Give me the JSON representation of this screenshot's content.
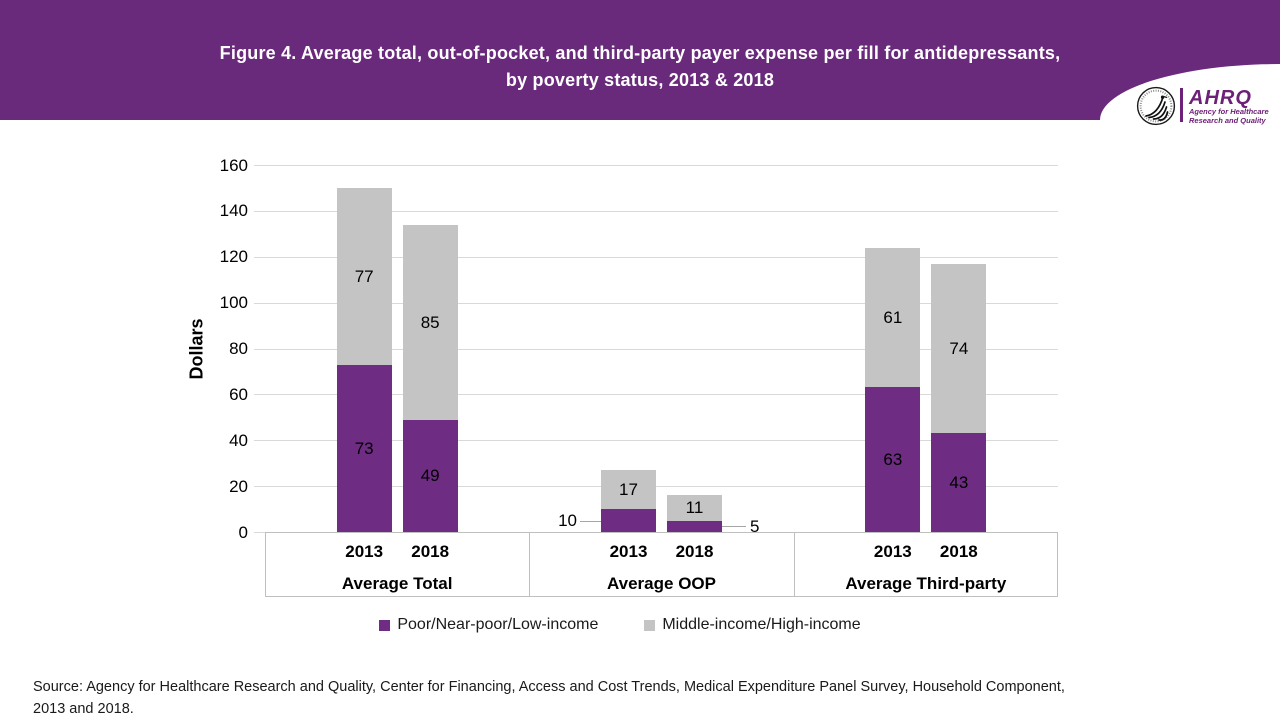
{
  "header": {
    "title": "Figure 4. Average total, out-of-pocket, and third-party payer expense per fill for antidepressants, by poverty status, 2013 & 2018",
    "logo": {
      "acronym": "AHRQ",
      "tagline_line1": "Agency for Healthcare",
      "tagline_line2": "Research and Quality"
    }
  },
  "colors": {
    "header_purple": "#6a2a7c",
    "bar_purple": "#6e2c82",
    "bar_gray": "#c4c4c4",
    "logo_purple": "#6d2077",
    "gridline": "#d9d9d9",
    "axis_border": "#bfbfbf"
  },
  "chart_data": {
    "type": "bar",
    "stacked": true,
    "ylabel": "Dollars",
    "ylim": [
      0,
      160
    ],
    "yticks": [
      0,
      20,
      40,
      60,
      80,
      100,
      120,
      140,
      160
    ],
    "grid": "horizontal",
    "legend_position": "bottom",
    "categories": [
      "Average Total",
      "Average OOP",
      "Average Third-party"
    ],
    "years": [
      "2013",
      "2018"
    ],
    "series": [
      {
        "name": "Poor/Near-poor/Low-income",
        "color": "#6e2c82",
        "values": [
          [
            73,
            49
          ],
          [
            10,
            5
          ],
          [
            63,
            43
          ]
        ]
      },
      {
        "name": "Middle-income/High-income",
        "color": "#c4c4c4",
        "values": [
          [
            77,
            85
          ],
          [
            17,
            11
          ],
          [
            61,
            74
          ]
        ]
      }
    ],
    "outside_labels": [
      {
        "category_index": 1,
        "year_index": 0,
        "series_index": 0,
        "side": "left"
      },
      {
        "category_index": 1,
        "year_index": 1,
        "series_index": 0,
        "side": "right"
      }
    ]
  },
  "source": {
    "text": "Source: Agency for Healthcare Research and Quality, Center for Financing, Access and Cost Trends, Medical Expenditure Panel Survey, Household Component, 2013 and 2018."
  }
}
